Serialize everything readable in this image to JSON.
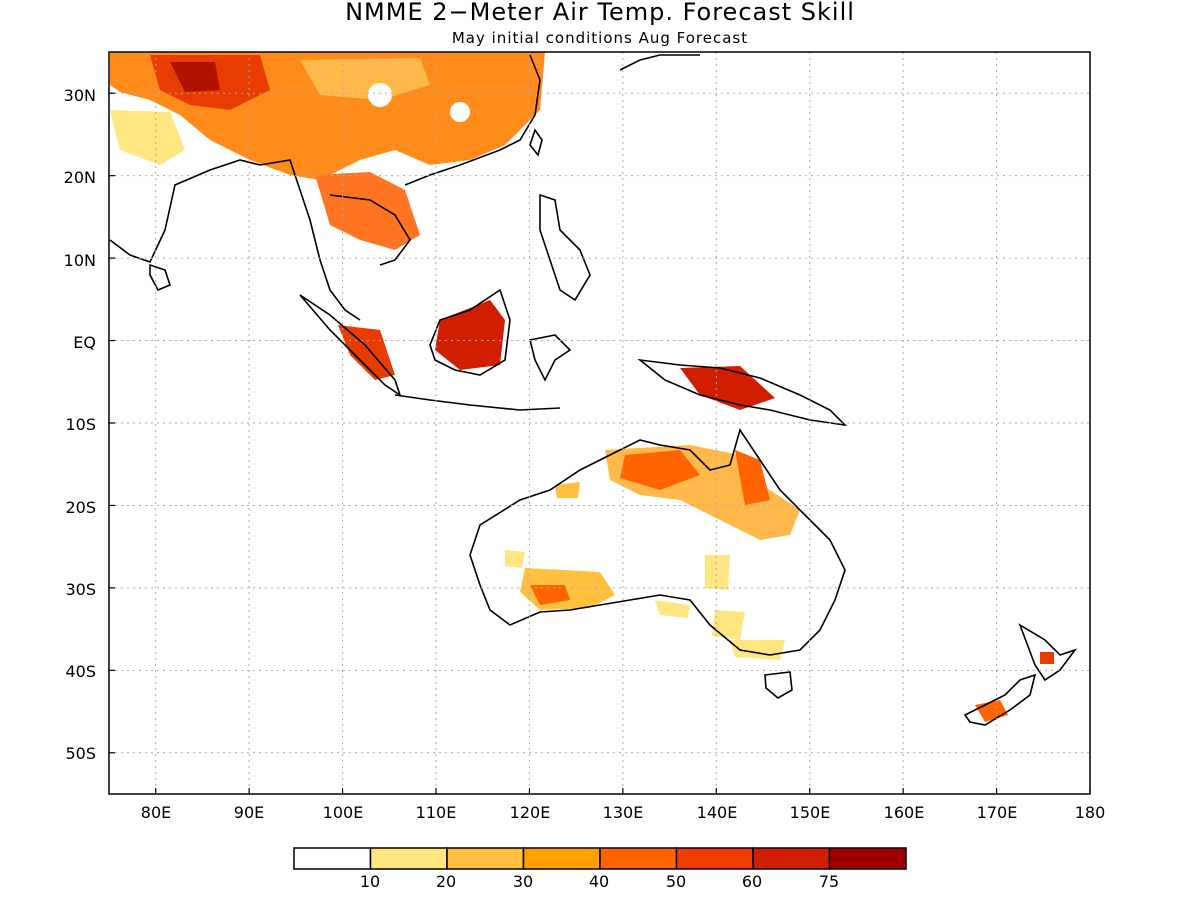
{
  "title": "NMME 2−Meter Air Temp. Forecast Skill",
  "subtitle": "May initial conditions  Aug Forecast",
  "map": {
    "lon_range": [
      75,
      180
    ],
    "lat_range": [
      -55,
      35
    ],
    "lat_labels": [
      "30N",
      "20N",
      "10N",
      "EQ",
      "10S",
      "20S",
      "30S",
      "40S",
      "50S"
    ],
    "lat_values": [
      30,
      20,
      10,
      0,
      -10,
      -20,
      -30,
      -40,
      -50
    ],
    "lon_labels": [
      "80E",
      "90E",
      "100E",
      "110E",
      "120E",
      "130E",
      "140E",
      "150E",
      "160E",
      "170E",
      "180"
    ],
    "lon_values": [
      80,
      90,
      100,
      110,
      120,
      130,
      140,
      150,
      160,
      170,
      180
    ]
  },
  "colorbar": {
    "labels": [
      "10",
      "20",
      "30",
      "40",
      "50",
      "60",
      "75"
    ],
    "colors": [
      "#ffffff",
      "#ffe680",
      "#ffc040",
      "#ffa000",
      "#ff6400",
      "#f03c00",
      "#d21e00",
      "#a00000"
    ]
  }
}
